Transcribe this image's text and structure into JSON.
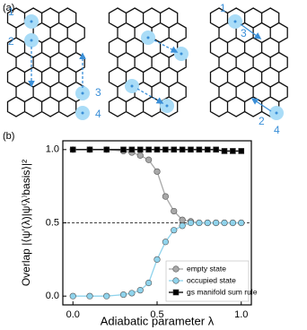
{
  "panel_a": {
    "label": "(a)",
    "site_labels_left": [
      "1",
      "2",
      "3",
      "4"
    ],
    "site_labels_right": [
      "1",
      "3",
      "2",
      "4"
    ]
  },
  "chart_data": {
    "type": "line",
    "panel_label": "(b)",
    "x_label": "Adiabatic parameter λ",
    "y_label": "Overlap |⟨ψ′(λ)|ψ⁽λ⁾basis⟩|²",
    "x": [
      0,
      0.1,
      0.2,
      0.3,
      0.35,
      0.4,
      0.45,
      0.5,
      0.55,
      0.6,
      0.65,
      0.7,
      0.75,
      0.8,
      0.85,
      0.9,
      0.95,
      1.0
    ],
    "series": [
      {
        "name": "empty state",
        "color": "#a8a8a8",
        "marker": "circle",
        "values": [
          1,
          1,
          1,
          0.99,
          0.98,
          0.96,
          0.93,
          0.85,
          0.68,
          0.58,
          0.52,
          0.51,
          0.5,
          0.5,
          0.5,
          0.5,
          0.5,
          0.5
        ]
      },
      {
        "name": "occupied state",
        "color": "#8fd3ec",
        "marker": "circle",
        "values": [
          0,
          0,
          0,
          0.01,
          0.02,
          0.04,
          0.09,
          0.25,
          0.37,
          0.45,
          0.48,
          0.5,
          0.5,
          0.5,
          0.5,
          0.5,
          0.5,
          0.5
        ]
      },
      {
        "name": "gs manifold sum rule",
        "color": "#000000",
        "marker": "square",
        "values": [
          1,
          1,
          1,
          1,
          1,
          1,
          1,
          1,
          1,
          1,
          1,
          1,
          1,
          1,
          1,
          0.99,
          0.99,
          0.99
        ]
      }
    ],
    "xlim": [
      -0.06,
      1.06
    ],
    "ylim": [
      -0.06,
      1.06
    ],
    "xticks": [
      {
        "value": 0,
        "label": "0.0"
      },
      {
        "value": 0.5,
        "label": "0.5"
      },
      {
        "value": 1,
        "label": "1.0"
      }
    ],
    "yticks": [
      {
        "value": 0,
        "label": "0.0"
      },
      {
        "value": 0.5,
        "label": "0.5"
      },
      {
        "value": 1,
        "label": "1.0"
      }
    ],
    "hline": 0.5,
    "legend": "lower right"
  }
}
